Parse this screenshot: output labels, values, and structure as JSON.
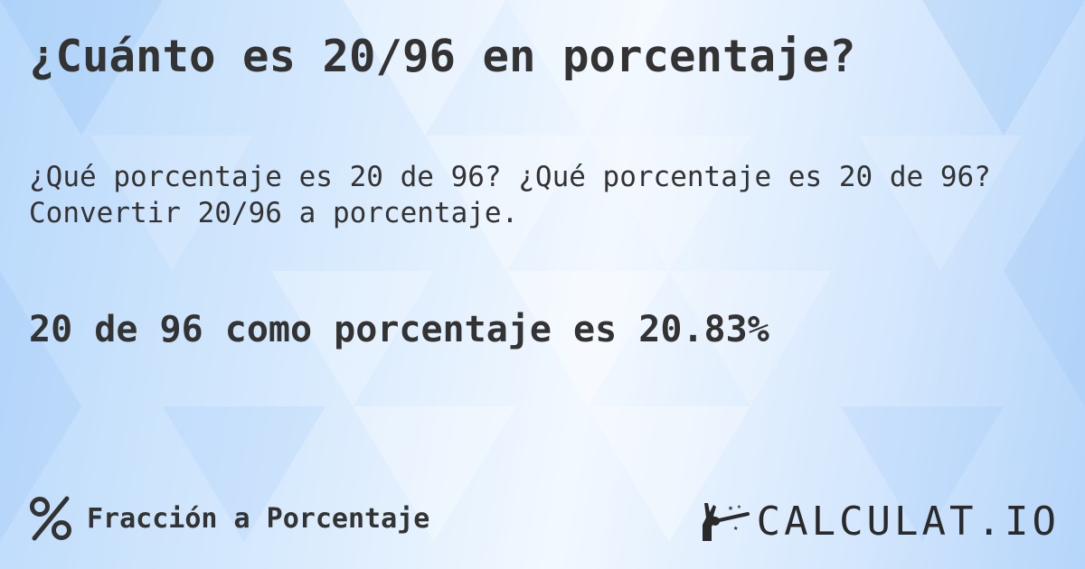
{
  "title": "¿Cuánto es 20/96 en porcentaje?",
  "subtitle_line1": "¿Qué porcentaje es 20 de 96? ¿Qué porcentaje es 20 de 96?",
  "subtitle_line2": "Convertir 20/96 a porcentaje.",
  "result": "20 de 96 como porcentaje es 20.83%",
  "footer": {
    "icon": "percent-icon",
    "label": "Fracción a Porcentaje"
  },
  "logo": {
    "text": "CALCULAT.IO",
    "icon": "magic-hand-wand-icon"
  },
  "colors": {
    "text": "#333333",
    "background_light": "#f2f8ff",
    "background_blue": "#b9d9fb"
  }
}
